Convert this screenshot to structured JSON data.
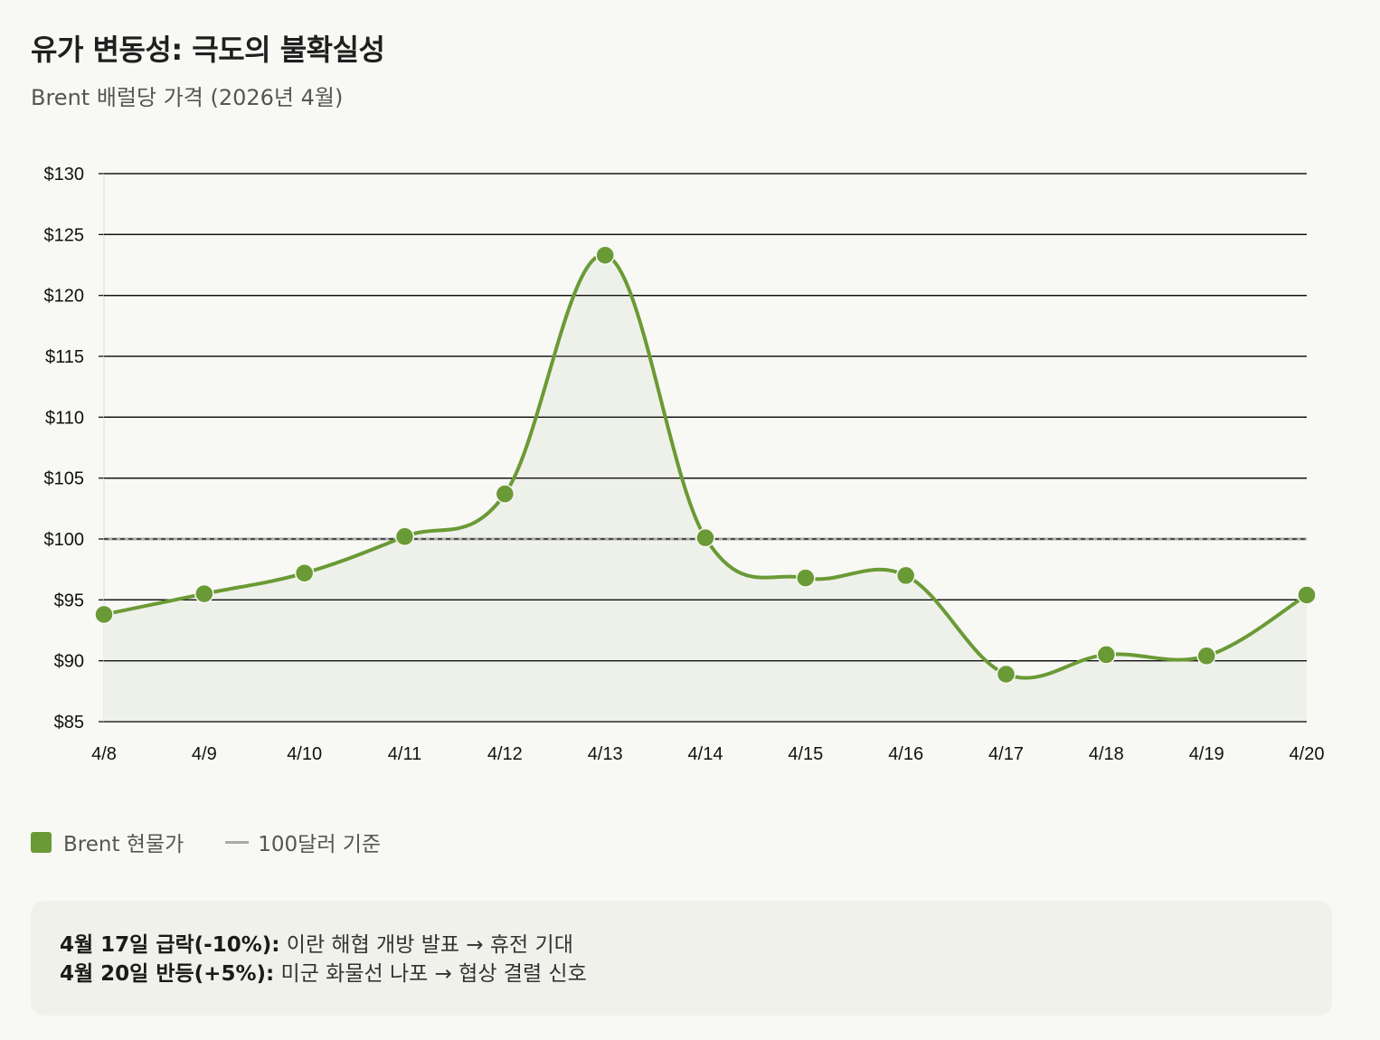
{
  "header": {
    "title": "유가 변동성: 극도의 불확실성",
    "subtitle": "Brent 배럴당 가격 (2026년 4월)"
  },
  "colors": {
    "series": "#6a9a35",
    "area": "#eef1ea",
    "reference": "#aaaaaa",
    "grid": "#111111"
  },
  "chart_data": {
    "type": "line",
    "title": "",
    "x": [
      "4/8",
      "4/9",
      "4/10",
      "4/11",
      "4/12",
      "4/13",
      "4/14",
      "4/15",
      "4/16",
      "4/17",
      "4/18",
      "4/19",
      "4/20"
    ],
    "series": [
      {
        "name": "Brent 현물가",
        "values": [
          93.8,
          95.5,
          97.2,
          100.2,
          103.7,
          123.3,
          100.1,
          96.8,
          97.0,
          88.9,
          90.5,
          90.4,
          95.4
        ]
      }
    ],
    "reference_line": {
      "label": "100달러 기준",
      "value": 100
    },
    "ylim": [
      85,
      130
    ],
    "y_ticks": [
      85,
      90,
      95,
      100,
      105,
      110,
      115,
      120,
      125,
      130
    ],
    "y_tick_labels": [
      "$85",
      "$90",
      "$95",
      "$100",
      "$105",
      "$110",
      "$115",
      "$120",
      "$125",
      "$130"
    ],
    "grid": true,
    "area_fill": true,
    "legend_position": "bottom-left"
  },
  "legend": {
    "series_label": "Brent 현물가",
    "reference_label": "100달러 기준"
  },
  "notes": [
    {
      "bold": "4월 17일 급락(-10%):",
      "text": " 이란 해협 개방 발표 → 휴전 기대"
    },
    {
      "bold": "4월 20일 반등(+5%):",
      "text": " 미군 화물선 나포 → 협상 결렬 신호"
    }
  ]
}
